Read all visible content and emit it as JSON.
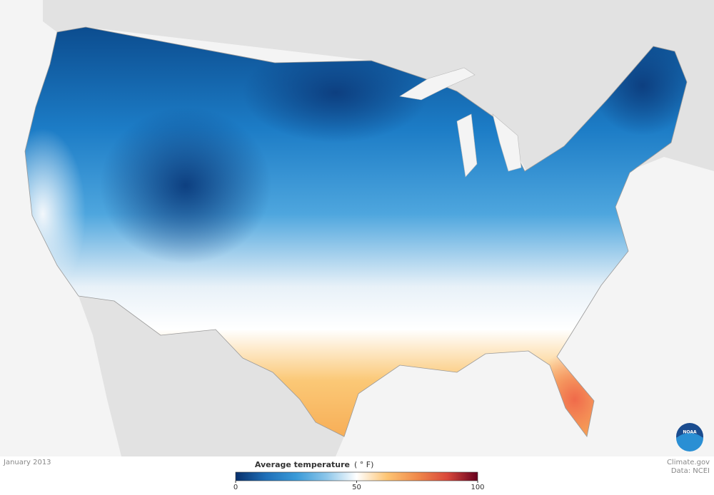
{
  "caption": "January 2013",
  "legend": {
    "title": "Average temperature",
    "unit": "( ° F)",
    "range": [
      0,
      100
    ],
    "ticks": [
      0,
      50,
      100
    ],
    "colors": [
      "#08306b",
      "#1f6fb8",
      "#3a9ad8",
      "#8cc6ea",
      "#ffffff",
      "#fdc574",
      "#f08a4b",
      "#d9483b",
      "#67001f"
    ]
  },
  "credits": {
    "site": "Climate.gov",
    "source": "Data: NCEI"
  },
  "logo": "NOAA"
}
